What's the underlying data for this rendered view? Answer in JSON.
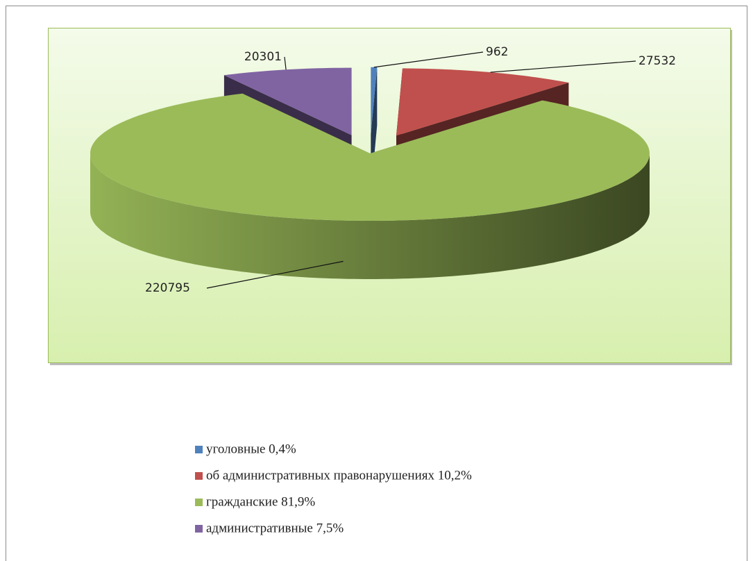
{
  "chart_data": {
    "type": "pie3d",
    "categories": [
      "уголовные 0,4%",
      "об административных правонарушениях 10,2%",
      "гражданские 81,9%",
      "административные 7,5%"
    ],
    "values": [
      962,
      27532,
      220795,
      20301
    ],
    "colors": [
      "#4f81bd",
      "#c0504d",
      "#9bbb59",
      "#8064a2"
    ],
    "legend": "bottom"
  }
}
